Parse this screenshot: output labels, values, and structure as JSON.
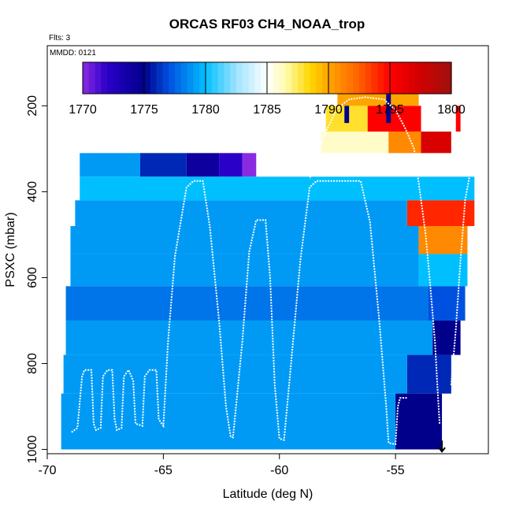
{
  "chart_data": {
    "type": "heatmap",
    "title": "ORCAS RF03 CH4_NOAA_trop",
    "annotations": {
      "flights": "Flts: 3",
      "date": "MMDD: 0121"
    },
    "xlabel": "Latitude (deg N)",
    "ylabel": "PSXC (mbar)",
    "xlim": [
      -70,
      -51
    ],
    "ylim": [
      1010,
      60
    ],
    "y_reversed": true,
    "x_ticks": [
      -70,
      -65,
      -60,
      -55
    ],
    "x_tick_labels": [
      "-70",
      "-65",
      "-60",
      "-55"
    ],
    "y_ticks": [
      200,
      400,
      600,
      800,
      1000
    ],
    "y_tick_labels": [
      "200",
      "400",
      "600",
      "800",
      "1000"
    ],
    "colorbar": {
      "min": 1770,
      "max": 1800,
      "ticks": [
        1770,
        1775,
        1780,
        1785,
        1790,
        1795,
        1800
      ],
      "tick_labels": [
        "1770",
        "1775",
        "1780",
        "1785",
        "1790",
        "1795",
        "1800"
      ],
      "stops": [
        {
          "v": 1770,
          "color": "#8a2be2"
        },
        {
          "v": 1772,
          "color": "#2a00c8"
        },
        {
          "v": 1775,
          "color": "#00008b"
        },
        {
          "v": 1777,
          "color": "#0050e0"
        },
        {
          "v": 1780,
          "color": "#00bfff"
        },
        {
          "v": 1782.5,
          "color": "#9fe3ff"
        },
        {
          "v": 1785,
          "color": "#ffffff"
        },
        {
          "v": 1786.5,
          "color": "#fffbb0"
        },
        {
          "v": 1788.5,
          "color": "#ffd700"
        },
        {
          "v": 1790,
          "color": "#ffa500"
        },
        {
          "v": 1792.5,
          "color": "#ff6000"
        },
        {
          "v": 1795,
          "color": "#ff0000"
        },
        {
          "v": 1797.5,
          "color": "#d00000"
        },
        {
          "v": 1800,
          "color": "#a01010"
        }
      ]
    },
    "cells": [
      {
        "x0": -68.6,
        "x1": -66.0,
        "p0": 310,
        "p1": 365,
        "v": 1779
      },
      {
        "x0": -66.0,
        "x1": -64.0,
        "p0": 310,
        "p1": 365,
        "v": 1776
      },
      {
        "x0": -64.0,
        "x1": -62.6,
        "p0": 310,
        "p1": 365,
        "v": 1774
      },
      {
        "x0": -62.6,
        "x1": -61.6,
        "p0": 310,
        "p1": 365,
        "v": 1772
      },
      {
        "x0": -61.6,
        "x1": -61.0,
        "p0": 310,
        "p1": 365,
        "v": 1770
      },
      {
        "x0": -68.6,
        "x1": -51.6,
        "p0": 365,
        "p1": 420,
        "v": 1780
      },
      {
        "x0": -68.8,
        "x1": -54.5,
        "p0": 420,
        "p1": 480,
        "v": 1779
      },
      {
        "x0": -54.5,
        "x1": -51.6,
        "p0": 420,
        "p1": 480,
        "v": 1794
      },
      {
        "x0": -69.0,
        "x1": -54.0,
        "p0": 480,
        "p1": 545,
        "v": 1779
      },
      {
        "x0": -54.0,
        "x1": -51.9,
        "p0": 480,
        "p1": 545,
        "v": 1791
      },
      {
        "x0": -69.0,
        "x1": -54.0,
        "p0": 545,
        "p1": 620,
        "v": 1779
      },
      {
        "x0": -54.0,
        "x1": -51.9,
        "p0": 545,
        "p1": 620,
        "v": 1780
      },
      {
        "x0": -69.2,
        "x1": -53.6,
        "p0": 620,
        "p1": 700,
        "v": 1778
      },
      {
        "x0": -53.6,
        "x1": -52.0,
        "p0": 620,
        "p1": 700,
        "v": 1777
      },
      {
        "x0": -69.2,
        "x1": -53.4,
        "p0": 700,
        "p1": 780,
        "v": 1779
      },
      {
        "x0": -53.4,
        "x1": -52.2,
        "p0": 700,
        "p1": 780,
        "v": 1775
      },
      {
        "x0": -69.3,
        "x1": -54.5,
        "p0": 780,
        "p1": 870,
        "v": 1779
      },
      {
        "x0": -54.5,
        "x1": -52.6,
        "p0": 780,
        "p1": 870,
        "v": 1776
      },
      {
        "x0": -69.4,
        "x1": -55.0,
        "p0": 870,
        "p1": 1000,
        "v": 1779
      },
      {
        "x0": -55.0,
        "x1": -53.0,
        "p0": 870,
        "p1": 1000,
        "v": 1775
      },
      {
        "x0": -58.2,
        "x1": -55.3,
        "p0": 260,
        "p1": 310,
        "v": 1786
      },
      {
        "x0": -55.3,
        "x1": -53.9,
        "p0": 260,
        "p1": 310,
        "v": 1791
      },
      {
        "x0": -53.9,
        "x1": -52.6,
        "p0": 260,
        "p1": 310,
        "v": 1797
      },
      {
        "x0": -58.0,
        "x1": -56.2,
        "p0": 200,
        "p1": 260,
        "v": 1788
      },
      {
        "x0": -56.2,
        "x1": -53.9,
        "p0": 200,
        "p1": 260,
        "v": 1795
      },
      {
        "x0": -57.5,
        "x1": -54.0,
        "p0": 165,
        "p1": 200,
        "v": 1790
      },
      {
        "x0": -52.4,
        "x1": -52.2,
        "p0": 200,
        "p1": 260,
        "v": 1795
      },
      {
        "x0": -57.2,
        "x1": -57.0,
        "p0": 200,
        "p1": 240,
        "v": 1775
      },
      {
        "x0": -55.4,
        "x1": -55.2,
        "p0": 165,
        "p1": 240,
        "v": 1775
      }
    ],
    "track": [
      [
        -68.95,
        960
      ],
      [
        -68.7,
        950
      ],
      [
        -68.5,
        830
      ],
      [
        -68.4,
        815
      ],
      [
        -68.1,
        815
      ],
      [
        -68.0,
        940
      ],
      [
        -67.9,
        955
      ],
      [
        -67.7,
        950
      ],
      [
        -67.6,
        830
      ],
      [
        -67.4,
        815
      ],
      [
        -67.2,
        815
      ],
      [
        -67.1,
        930
      ],
      [
        -67.0,
        955
      ],
      [
        -66.8,
        950
      ],
      [
        -66.7,
        830
      ],
      [
        -66.5,
        815
      ],
      [
        -66.3,
        840
      ],
      [
        -66.2,
        940
      ],
      [
        -65.9,
        945
      ],
      [
        -65.8,
        830
      ],
      [
        -65.6,
        815
      ],
      [
        -65.3,
        815
      ],
      [
        -65.2,
        930
      ],
      [
        -65.0,
        945
      ],
      [
        -64.8,
        750
      ],
      [
        -64.5,
        550
      ],
      [
        -64.0,
        390
      ],
      [
        -63.7,
        375
      ],
      [
        -63.3,
        375
      ],
      [
        -63.0,
        480
      ],
      [
        -62.6,
        700
      ],
      [
        -62.3,
        900
      ],
      [
        -62.1,
        970
      ],
      [
        -62.0,
        972
      ],
      [
        -61.6,
        750
      ],
      [
        -61.3,
        540
      ],
      [
        -61.0,
        466
      ],
      [
        -60.6,
        466
      ],
      [
        -60.4,
        600
      ],
      [
        -60.2,
        850
      ],
      [
        -60.0,
        975
      ],
      [
        -59.8,
        978
      ],
      [
        -59.5,
        800
      ],
      [
        -59.1,
        560
      ],
      [
        -58.7,
        390
      ],
      [
        -58.4,
        375
      ],
      [
        -57.8,
        375
      ],
      [
        -57.0,
        375
      ],
      [
        -56.5,
        375
      ],
      [
        -56.1,
        470
      ],
      [
        -55.7,
        700
      ],
      [
        -55.4,
        900
      ],
      [
        -55.3,
        985
      ],
      [
        -55.0,
        988
      ],
      [
        -54.9,
        900
      ],
      [
        -54.8,
        880
      ],
      [
        -54.5,
        880
      ]
    ],
    "track2": [
      [
        -53.1,
        940
      ],
      [
        -53.2,
        850
      ],
      [
        -53.3,
        750
      ],
      [
        -53.5,
        620
      ],
      [
        -53.7,
        500
      ],
      [
        -54.0,
        380
      ],
      [
        -54.2,
        300
      ],
      [
        -54.6,
        250
      ],
      [
        -55.0,
        210
      ],
      [
        -55.5,
        185
      ],
      [
        -56.3,
        180
      ],
      [
        -57.0,
        185
      ],
      [
        -57.5,
        205
      ],
      [
        -58.0,
        260
      ],
      [
        -58.4,
        320
      ],
      [
        -58.7,
        370
      ]
    ],
    "track3": [
      [
        -52.6,
        850
      ],
      [
        -52.4,
        720
      ],
      [
        -52.2,
        560
      ],
      [
        -52.0,
        420
      ],
      [
        -51.8,
        360
      ]
    ],
    "marker": {
      "x": -53.0,
      "p": 1005
    }
  }
}
